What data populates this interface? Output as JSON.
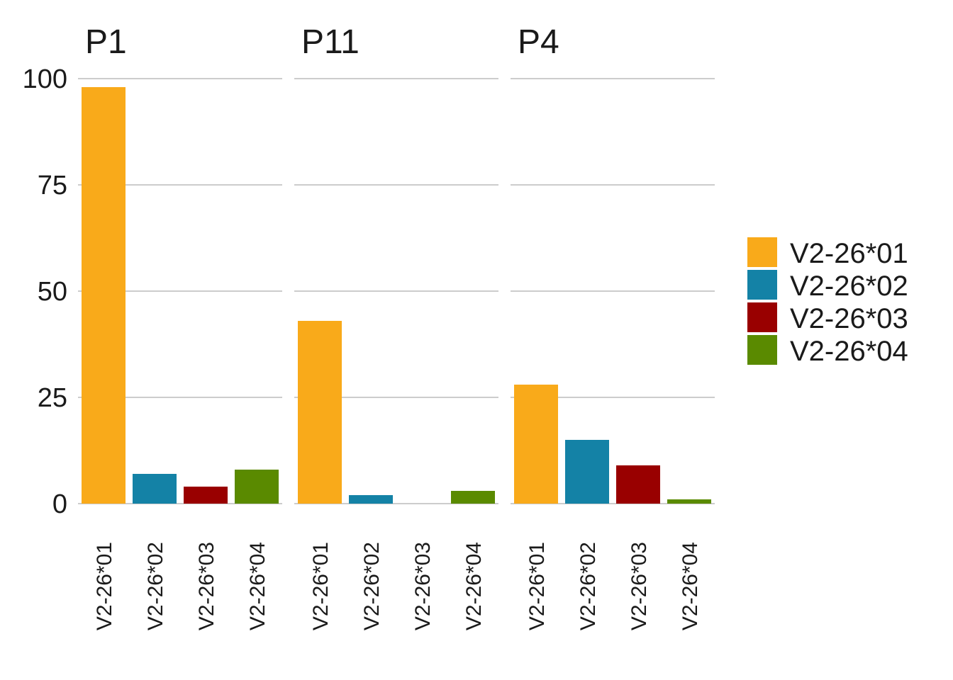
{
  "chart_data": {
    "type": "bar",
    "categories": [
      "V2-26*01",
      "V2-26*02",
      "V2-26*03",
      "V2-26*04"
    ],
    "colors": {
      "V2-26*01": "#F9AA1A",
      "V2-26*02": "#1482A6",
      "V2-26*03": "#990000",
      "V2-26*04": "#5A8A00"
    },
    "panels": [
      {
        "title": "P1",
        "values": [
          98,
          7,
          4,
          8
        ]
      },
      {
        "title": "P11",
        "values": [
          43,
          2,
          0,
          3
        ]
      },
      {
        "title": "P4",
        "values": [
          28,
          15,
          9,
          1
        ]
      }
    ],
    "ylim": [
      0,
      100
    ],
    "y_ticks": [
      0,
      25,
      50,
      75,
      100
    ],
    "grid": true,
    "legend": {
      "position": "right",
      "entries": [
        "V2-26*01",
        "V2-26*02",
        "V2-26*03",
        "V2-26*04"
      ]
    },
    "xlabel": "",
    "ylabel": ""
  }
}
